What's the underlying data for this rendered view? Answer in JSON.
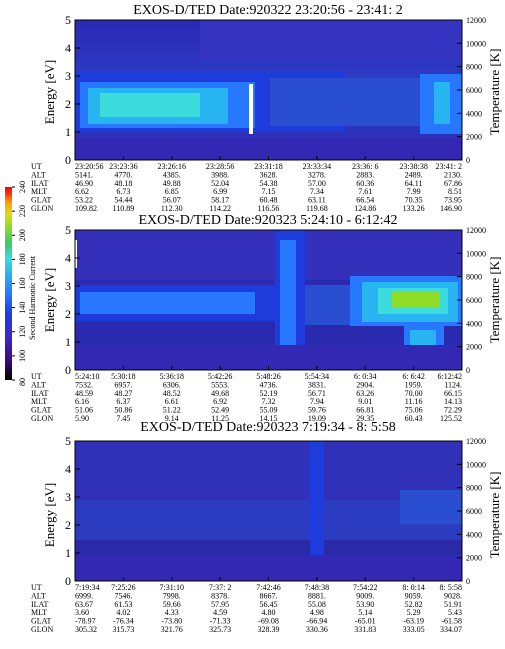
{
  "colorbar": {
    "label": "Second Harmonic Current",
    "ticks": [
      "80",
      "100",
      "120",
      "140",
      "160",
      "180",
      "200",
      "220",
      "240"
    ],
    "colors": [
      "#000000",
      "#3c0a78",
      "#3c28c8",
      "#1e3cdc",
      "#2878ff",
      "#28b4f0",
      "#3cdcdc",
      "#3cc864",
      "#8cdc28",
      "#dcdc14",
      "#ffa000",
      "#ff2814",
      "#ff0000"
    ]
  },
  "chart_data": [
    {
      "type": "heatmap",
      "title": "EXOS-D/TED   Date:920322  23:20:56 - 23:41: 2",
      "ylabel": "Energy [eV]",
      "y2label": "Temperature [K]",
      "ylim": [
        0,
        5
      ],
      "y2lim": [
        0,
        12000
      ],
      "yticks": [
        "0",
        "1",
        "2",
        "3",
        "4",
        "5"
      ],
      "y2ticks": [
        "0",
        "2000",
        "4000",
        "6000",
        "8000",
        "10000",
        "12000"
      ],
      "ephemeris": {
        "labels": [
          "UT",
          "ALT",
          "ILAT",
          "MLT",
          "GLAT",
          "GLON"
        ],
        "rows": [
          [
            "23:20:56",
            "23:23:36",
            "23:26:16",
            "23:28:56",
            "23:31:18",
            "23:33:34",
            "23:36: 6",
            "23:38:38",
            "23:41: 2"
          ],
          [
            "5141.",
            "4770.",
            "4385.",
            "3988.",
            "3628.",
            "3278.",
            "2883.",
            "2489.",
            "2130."
          ],
          [
            "46.90",
            "48.18",
            "49.88",
            "52.04",
            "54.38",
            "57.00",
            "60.36",
            "64.11",
            "67.86"
          ],
          [
            "6.62",
            "6.73",
            "6.85",
            "6.99",
            "7.15",
            "7.34",
            "7.61",
            "7.99",
            "8.51"
          ],
          [
            "53.22",
            "54.44",
            "56.07",
            "58.17",
            "60.48",
            "63.11",
            "66.54",
            "70.35",
            "73.95"
          ],
          [
            "109.82",
            "110.89",
            "112.30",
            "114.22",
            "116.56",
            "119.68",
            "124.86",
            "133.26",
            "146.90"
          ]
        ]
      }
    },
    {
      "type": "heatmap",
      "title": "EXOS-D/TED   Date:920323  5:24:10 - 6:12:42",
      "ylabel": "Energy [eV]",
      "y2label": "Temperature [K]",
      "ylim": [
        0,
        5
      ],
      "y2lim": [
        0,
        12000
      ],
      "yticks": [
        "0",
        "1",
        "2",
        "3",
        "4",
        "5"
      ],
      "y2ticks": [
        "0",
        "2000",
        "4000",
        "6000",
        "8000",
        "10000",
        "12000"
      ],
      "ephemeris": {
        "labels": [
          "UT",
          "ALT",
          "ILAT",
          "MLT",
          "GLAT",
          "GLON"
        ],
        "rows": [
          [
            "5:24:10",
            "5:30:18",
            "5:36:18",
            "5:42:26",
            "5:48:26",
            "5:54:34",
            "6: 0:34",
            "6: 6:42",
            "6:12:42"
          ],
          [
            "7532.",
            "6957.",
            "6306.",
            "5553.",
            "4736.",
            "3831.",
            "2904.",
            "1959.",
            "1124."
          ],
          [
            "48.59",
            "48.27",
            "48.52",
            "49.68",
            "52.19",
            "56.71",
            "63.26",
            "70.00",
            "66.15"
          ],
          [
            "6.16",
            "6.37",
            "6.61",
            "6.92",
            "7.32",
            "7.94",
            "9.01",
            "11.16",
            "14.13"
          ],
          [
            "51.06",
            "50.86",
            "51.22",
            "52.49",
            "55.09",
            "59.76",
            "66.81",
            "75.06",
            "72.29"
          ],
          [
            "5.90",
            "7.45",
            "9.14",
            "11.25",
            "14.15",
            "19.09",
            "29.35",
            "60.43",
            "125.52"
          ]
        ]
      }
    },
    {
      "type": "heatmap",
      "title": "EXOS-D/TED   Date:920323  7:19:34 - 8: 5:58",
      "ylabel": "Energy [eV]",
      "y2label": "Temperature [K]",
      "ylim": [
        0,
        5
      ],
      "y2lim": [
        0,
        12000
      ],
      "yticks": [
        "0",
        "1",
        "2",
        "3",
        "4",
        "5"
      ],
      "y2ticks": [
        "0",
        "2000",
        "4000",
        "6000",
        "8000",
        "10000",
        "12000"
      ],
      "ephemeris": {
        "labels": [
          "UT",
          "ALT",
          "ILAT",
          "MLT",
          "GLAT",
          "GLON"
        ],
        "rows": [
          [
            "7:19:34",
            "7:25:26",
            "7:31:10",
            "7:37: 2",
            "7:42:46",
            "7:48:38",
            "7:54:22",
            "8: 0:14",
            "8: 5:58"
          ],
          [
            "6999.",
            "7546.",
            "7998.",
            "8378.",
            "8667.",
            "8881.",
            "9009.",
            "9059.",
            "9028."
          ],
          [
            "63.67",
            "61.53",
            "59.66",
            "57.95",
            "56.45",
            "55.08",
            "53.90",
            "52.82",
            "51.91"
          ],
          [
            "3.60",
            "4.02",
            "4.33",
            "4.59",
            "4.80",
            "4.98",
            "5.14",
            "5.29",
            "5.43"
          ],
          [
            "-78.97",
            "-76.34",
            "-73.80",
            "-71.33",
            "-69.08",
            "-66.94",
            "-65.01",
            "-63.19",
            "-61.58"
          ],
          [
            "305.32",
            "315.73",
            "321.76",
            "325.73",
            "328.39",
            "330.36",
            "331.83",
            "333.05",
            "334.07"
          ]
        ]
      }
    }
  ]
}
